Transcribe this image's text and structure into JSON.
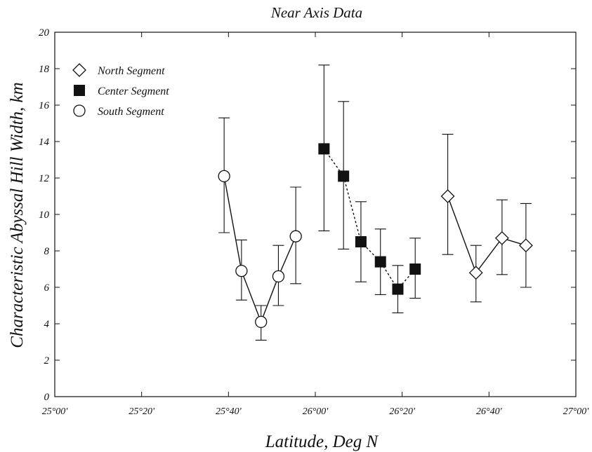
{
  "chart_data": {
    "type": "scatter",
    "title": "Near Axis Data",
    "xlabel": "Latitude, Deg N",
    "ylabel": "Characteristic Abyssal Hill Width, km",
    "xlim": [
      0,
      120
    ],
    "ylim": [
      0,
      20
    ],
    "x_unit_note": "minutes after 25°00' N",
    "x_ticks": [
      {
        "value": 0,
        "label": "25°00'"
      },
      {
        "value": 20,
        "label": "25°20'"
      },
      {
        "value": 40,
        "label": "25°40'"
      },
      {
        "value": 60,
        "label": "26°00'"
      },
      {
        "value": 80,
        "label": "26°20'"
      },
      {
        "value": 100,
        "label": "26°40'"
      },
      {
        "value": 120,
        "label": "27°00'"
      }
    ],
    "y_ticks": [
      0,
      2,
      4,
      6,
      8,
      10,
      12,
      14,
      16,
      18,
      20
    ],
    "grid": false,
    "legend_position": "top-left",
    "series": [
      {
        "name": "North Segment",
        "marker": "diamond",
        "line": "solid",
        "points": [
          {
            "x": 90.5,
            "y": 11.0,
            "lo": 7.8,
            "hi": 14.4
          },
          {
            "x": 97.0,
            "y": 6.8,
            "lo": 5.2,
            "hi": 8.3
          },
          {
            "x": 103.0,
            "y": 8.7,
            "lo": 6.7,
            "hi": 10.8
          },
          {
            "x": 108.5,
            "y": 8.3,
            "lo": 6.0,
            "hi": 10.6
          }
        ]
      },
      {
        "name": "Center Segment",
        "marker": "filled-square",
        "line": "dashed",
        "points": [
          {
            "x": 62.0,
            "y": 13.6,
            "lo": 9.1,
            "hi": 18.2
          },
          {
            "x": 66.5,
            "y": 12.1,
            "lo": 8.1,
            "hi": 16.2
          },
          {
            "x": 70.5,
            "y": 8.5,
            "lo": 6.3,
            "hi": 10.7
          },
          {
            "x": 75.0,
            "y": 7.4,
            "lo": 5.6,
            "hi": 9.2
          },
          {
            "x": 79.0,
            "y": 5.9,
            "lo": 4.6,
            "hi": 7.2
          },
          {
            "x": 83.0,
            "y": 7.0,
            "lo": 5.4,
            "hi": 8.7
          }
        ]
      },
      {
        "name": "South Segment",
        "marker": "circle",
        "line": "solid",
        "points": [
          {
            "x": 39.0,
            "y": 12.1,
            "lo": 9.0,
            "hi": 15.3
          },
          {
            "x": 43.0,
            "y": 6.9,
            "lo": 5.3,
            "hi": 8.6
          },
          {
            "x": 47.5,
            "y": 4.1,
            "lo": 3.1,
            "hi": 5.0
          },
          {
            "x": 51.5,
            "y": 6.6,
            "lo": 5.0,
            "hi": 8.3
          },
          {
            "x": 55.5,
            "y": 8.8,
            "lo": 6.2,
            "hi": 11.5
          }
        ]
      }
    ]
  }
}
